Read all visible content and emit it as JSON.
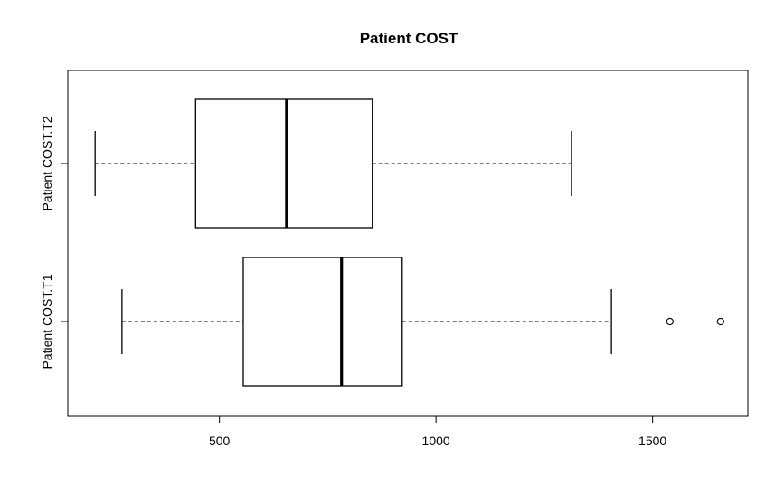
{
  "chart_data": {
    "type": "boxplot",
    "orientation": "horizontal",
    "title": "Patient COST",
    "xlabel": "",
    "ylabel": "",
    "xlim": [
      150,
      1720
    ],
    "xticks": [
      500,
      1000,
      1500
    ],
    "tick_labels": [
      "500",
      "1000",
      "1500"
    ],
    "grid": false,
    "series": [
      {
        "name": "Patient COST.T1",
        "whisker_low": 275,
        "q1": 555,
        "median": 782,
        "q3": 922,
        "whisker_high": 1405,
        "outliers": [
          1540,
          1657
        ]
      },
      {
        "name": "Patient COST.T2",
        "whisker_low": 213,
        "q1": 445,
        "median": 655,
        "q3": 853,
        "whisker_high": 1313,
        "outliers": []
      }
    ]
  }
}
